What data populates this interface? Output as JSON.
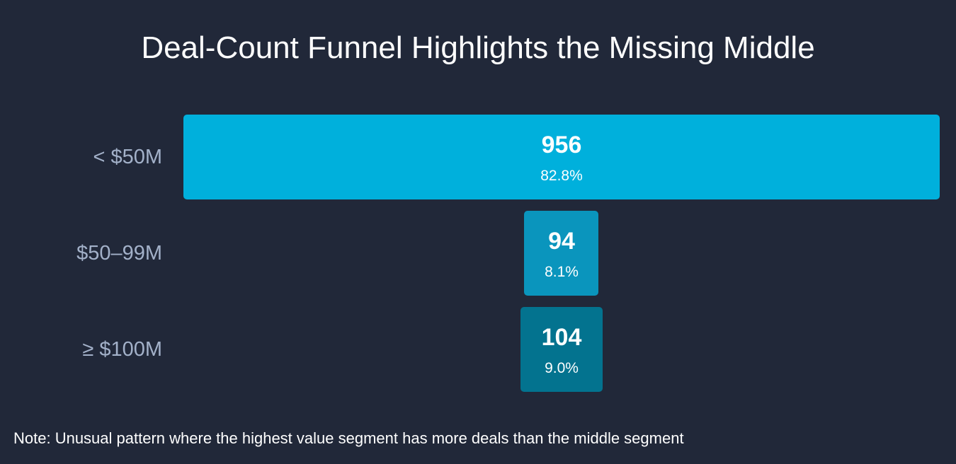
{
  "chart_data": {
    "type": "bar",
    "orientation": "horizontal-funnel",
    "title": "Deal-Count Funnel Highlights the Missing Middle",
    "categories": [
      "< $50M",
      "$50–99M",
      "≥ $100M"
    ],
    "values": [
      956,
      94,
      104
    ],
    "percent_labels": [
      "82.8%",
      "8.1%",
      "9.0%"
    ],
    "colors": [
      "#00b0dc",
      "#0a95bd",
      "#03738f"
    ],
    "note": "Note: Unusual pattern where the highest value segment has more deals than the middle segment",
    "background": "#212839",
    "label_color": "#a3b1c9"
  }
}
